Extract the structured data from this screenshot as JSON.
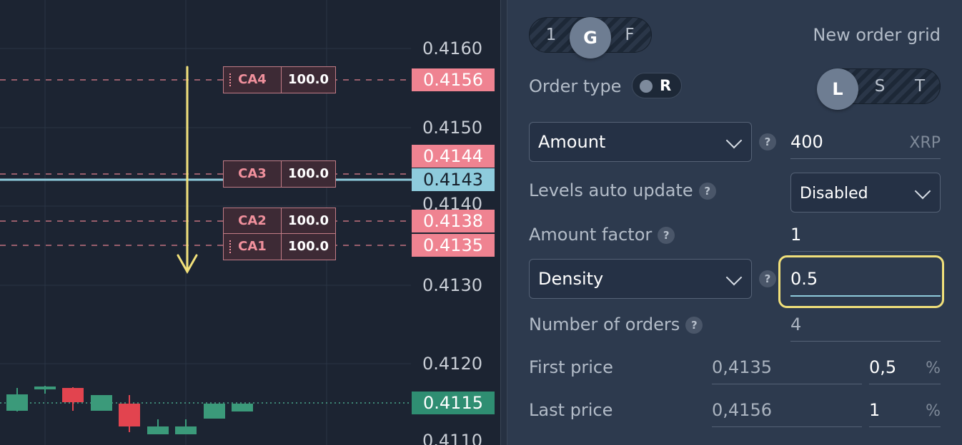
{
  "chart": {
    "price_ticks": [
      "0.4160",
      "0.4150",
      "0.4140",
      "0.4130",
      "0.4120",
      "0.4110"
    ],
    "price_tags": {
      "ca4": "0.4156",
      "ca3_sell": "0.4144",
      "current": "0.4143",
      "ca2": "0.4138",
      "ca1": "0.4135",
      "last": "0.4115"
    },
    "orders": [
      {
        "label": "CA4",
        "qty": "100.0"
      },
      {
        "label": "CA3",
        "qty": "100.0"
      },
      {
        "label": "CA2",
        "qty": "100.0"
      },
      {
        "label": "CA1",
        "qty": "100.0"
      }
    ],
    "candles": [
      {
        "color": "green"
      },
      {
        "color": "green"
      },
      {
        "color": "red"
      },
      {
        "color": "green"
      },
      {
        "color": "red"
      },
      {
        "color": "green"
      },
      {
        "color": "green"
      },
      {
        "color": "green"
      },
      {
        "color": "green"
      }
    ],
    "colors": {
      "sell": "#ef8391",
      "buy": "#3b9a7a",
      "current": "#8ecbdc",
      "arrow": "#f1e07a"
    }
  },
  "panel": {
    "mode_switch": {
      "options": [
        "1",
        "G",
        "F"
      ],
      "selected": "G"
    },
    "title": "New order grid",
    "order_type": {
      "label": "Order type",
      "toggle_label": "R"
    },
    "side_switch": {
      "options": [
        "L",
        "S",
        "T"
      ],
      "selected": "L"
    },
    "amount": {
      "select": "Amount",
      "value": "400",
      "unit": "XRP"
    },
    "levels_auto_update": {
      "label": "Levels auto update",
      "value": "Disabled"
    },
    "amount_factor": {
      "label": "Amount factor",
      "value": "1"
    },
    "density": {
      "select": "Density",
      "value": "0.5"
    },
    "number_of_orders": {
      "label": "Number of orders",
      "value": "4"
    },
    "first_price": {
      "label": "First price",
      "price": "0,4135",
      "percent": "0,5",
      "unit": "%"
    },
    "last_price": {
      "label": "Last price",
      "price": "0,4156",
      "percent": "1",
      "unit": "%"
    },
    "help_glyph": "?",
    "highlight_color": "#f1e07a"
  }
}
